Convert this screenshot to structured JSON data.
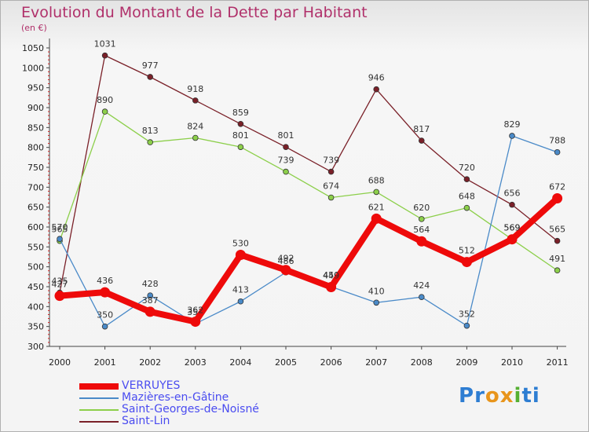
{
  "chart_title": "Evolution du Montant de la Dette par Habitant",
  "chart_unit": "(en €)",
  "brand": {
    "text": "Proxiti",
    "letters": [
      "P",
      "r",
      "o",
      "x",
      "i",
      "t",
      "i"
    ],
    "colors": [
      "#2d7dd2",
      "#2d7dd2",
      "#e8951c",
      "#e8951c",
      "#55b032",
      "#2d7dd2",
      "#2d7dd2"
    ]
  },
  "chart_data": {
    "type": "line",
    "title": "Evolution du Montant de la Dette par Habitant",
    "subtitle": "(en €)",
    "x": [
      "2000",
      "2001",
      "2002",
      "2003",
      "2004",
      "2005",
      "2006",
      "2007",
      "2008",
      "2009",
      "2010",
      "2011"
    ],
    "ylim": [
      300,
      1050
    ],
    "yticks": [
      300,
      350,
      400,
      450,
      500,
      550,
      600,
      650,
      700,
      750,
      800,
      850,
      900,
      950,
      1000,
      1050
    ],
    "grid": false,
    "legend_position": "bottom-left",
    "series": [
      {
        "name": "Saint-Lin",
        "color": "#7a2028",
        "values": [
          435,
          1031,
          977,
          918,
          859,
          801,
          739,
          946,
          817,
          720,
          656,
          565
        ]
      },
      {
        "name": "Saint-Georges-de-Noisné",
        "color": "#8ccf4a",
        "values": [
          565,
          890,
          813,
          824,
          801,
          739,
          674,
          688,
          620,
          648,
          569,
          491
        ]
      },
      {
        "name": "Mazières-en-Gâtine",
        "color": "#4a8ac8",
        "values": [
          570,
          350,
          428,
          357,
          413,
          486,
          450,
          410,
          424,
          352,
          829,
          788
        ]
      },
      {
        "name": "VERRUYES",
        "color": "#ee0a0a",
        "values": [
          427,
          436,
          387,
          362,
          530,
          492,
          449,
          621,
          564,
          512,
          569,
          672
        ]
      }
    ],
    "data_labels": {
      "Saint-Lin": [
        "435",
        "1031",
        "977",
        "918",
        "859",
        "801",
        "739",
        "946",
        "817",
        "720",
        "656",
        "565"
      ],
      "Saint-Georges-de-Noisné": [
        "565",
        "890",
        "813",
        "824",
        "801",
        "739",
        "674",
        "688",
        "620",
        "648",
        "569",
        "491"
      ],
      "Mazières-en-Gâtine": [
        "570",
        "350",
        "428",
        "357",
        "413",
        "486",
        "450",
        "410",
        "424",
        "352",
        "829",
        "788"
      ],
      "VERRUYES": [
        "427",
        "436",
        "387",
        "362",
        "530",
        "492",
        "449",
        "621",
        "564",
        "512",
        "569",
        "672"
      ]
    }
  },
  "legend": [
    {
      "name": "VERRUYES",
      "color": "#ee0a0a"
    },
    {
      "name": "Mazières-en-Gâtine",
      "color": "#4a8ac8"
    },
    {
      "name": "Saint-Georges-de-Noisné",
      "color": "#8ccf4a"
    },
    {
      "name": "Saint-Lin",
      "color": "#7a2028"
    }
  ]
}
